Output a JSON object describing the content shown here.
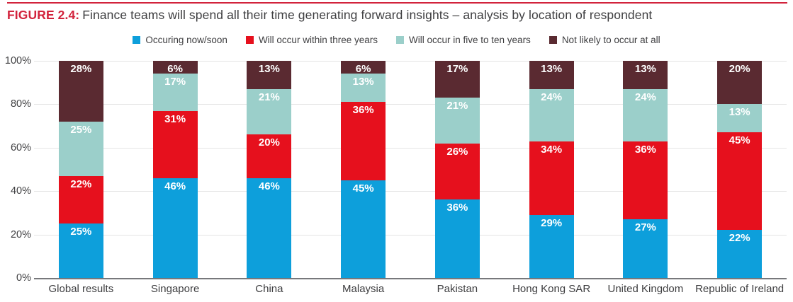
{
  "title": {
    "figure_label": "FIGURE 2.4:",
    "text": "Finance teams will spend all their time generating forward insights – analysis by location of respondent"
  },
  "colors": {
    "accent_red": "#d2233c",
    "text_dark": "#3e3e40",
    "grid": "#e4e4e4",
    "axis_line": "#77787b",
    "series_blue": "#0d9fdb",
    "series_red": "#e6101d",
    "series_teal": "#9bcfca",
    "series_maroon": "#5a2a31"
  },
  "chart_data": {
    "type": "bar",
    "stacked": true,
    "title": "FIGURE 2.4: Finance teams will spend all their time generating forward insights – analysis by location of respondent",
    "categories": [
      "Global results",
      "Singapore",
      "China",
      "Malaysia",
      "Pakistan",
      "Hong Kong SAR",
      "United Kingdom",
      "Republic of Ireland"
    ],
    "series": [
      {
        "name": "Occuring now/soon",
        "color": "#0d9fdb",
        "values": [
          25,
          46,
          46,
          45,
          36,
          29,
          27,
          22
        ]
      },
      {
        "name": "Will occur within three years",
        "color": "#e6101d",
        "values": [
          22,
          31,
          20,
          36,
          26,
          34,
          36,
          45
        ]
      },
      {
        "name": "Will occur in five to ten years",
        "color": "#9bcfca",
        "values": [
          25,
          17,
          21,
          13,
          21,
          24,
          24,
          13
        ]
      },
      {
        "name": "Not likely to occur at all",
        "color": "#5a2a31",
        "values": [
          28,
          6,
          13,
          6,
          17,
          13,
          13,
          20
        ]
      }
    ],
    "y_ticks": [
      0,
      20,
      40,
      60,
      80,
      100
    ],
    "y_tick_suffix": "%",
    "value_label_suffix": "%",
    "ylim": [
      0,
      100
    ],
    "grid": true,
    "legend_position": "top"
  }
}
